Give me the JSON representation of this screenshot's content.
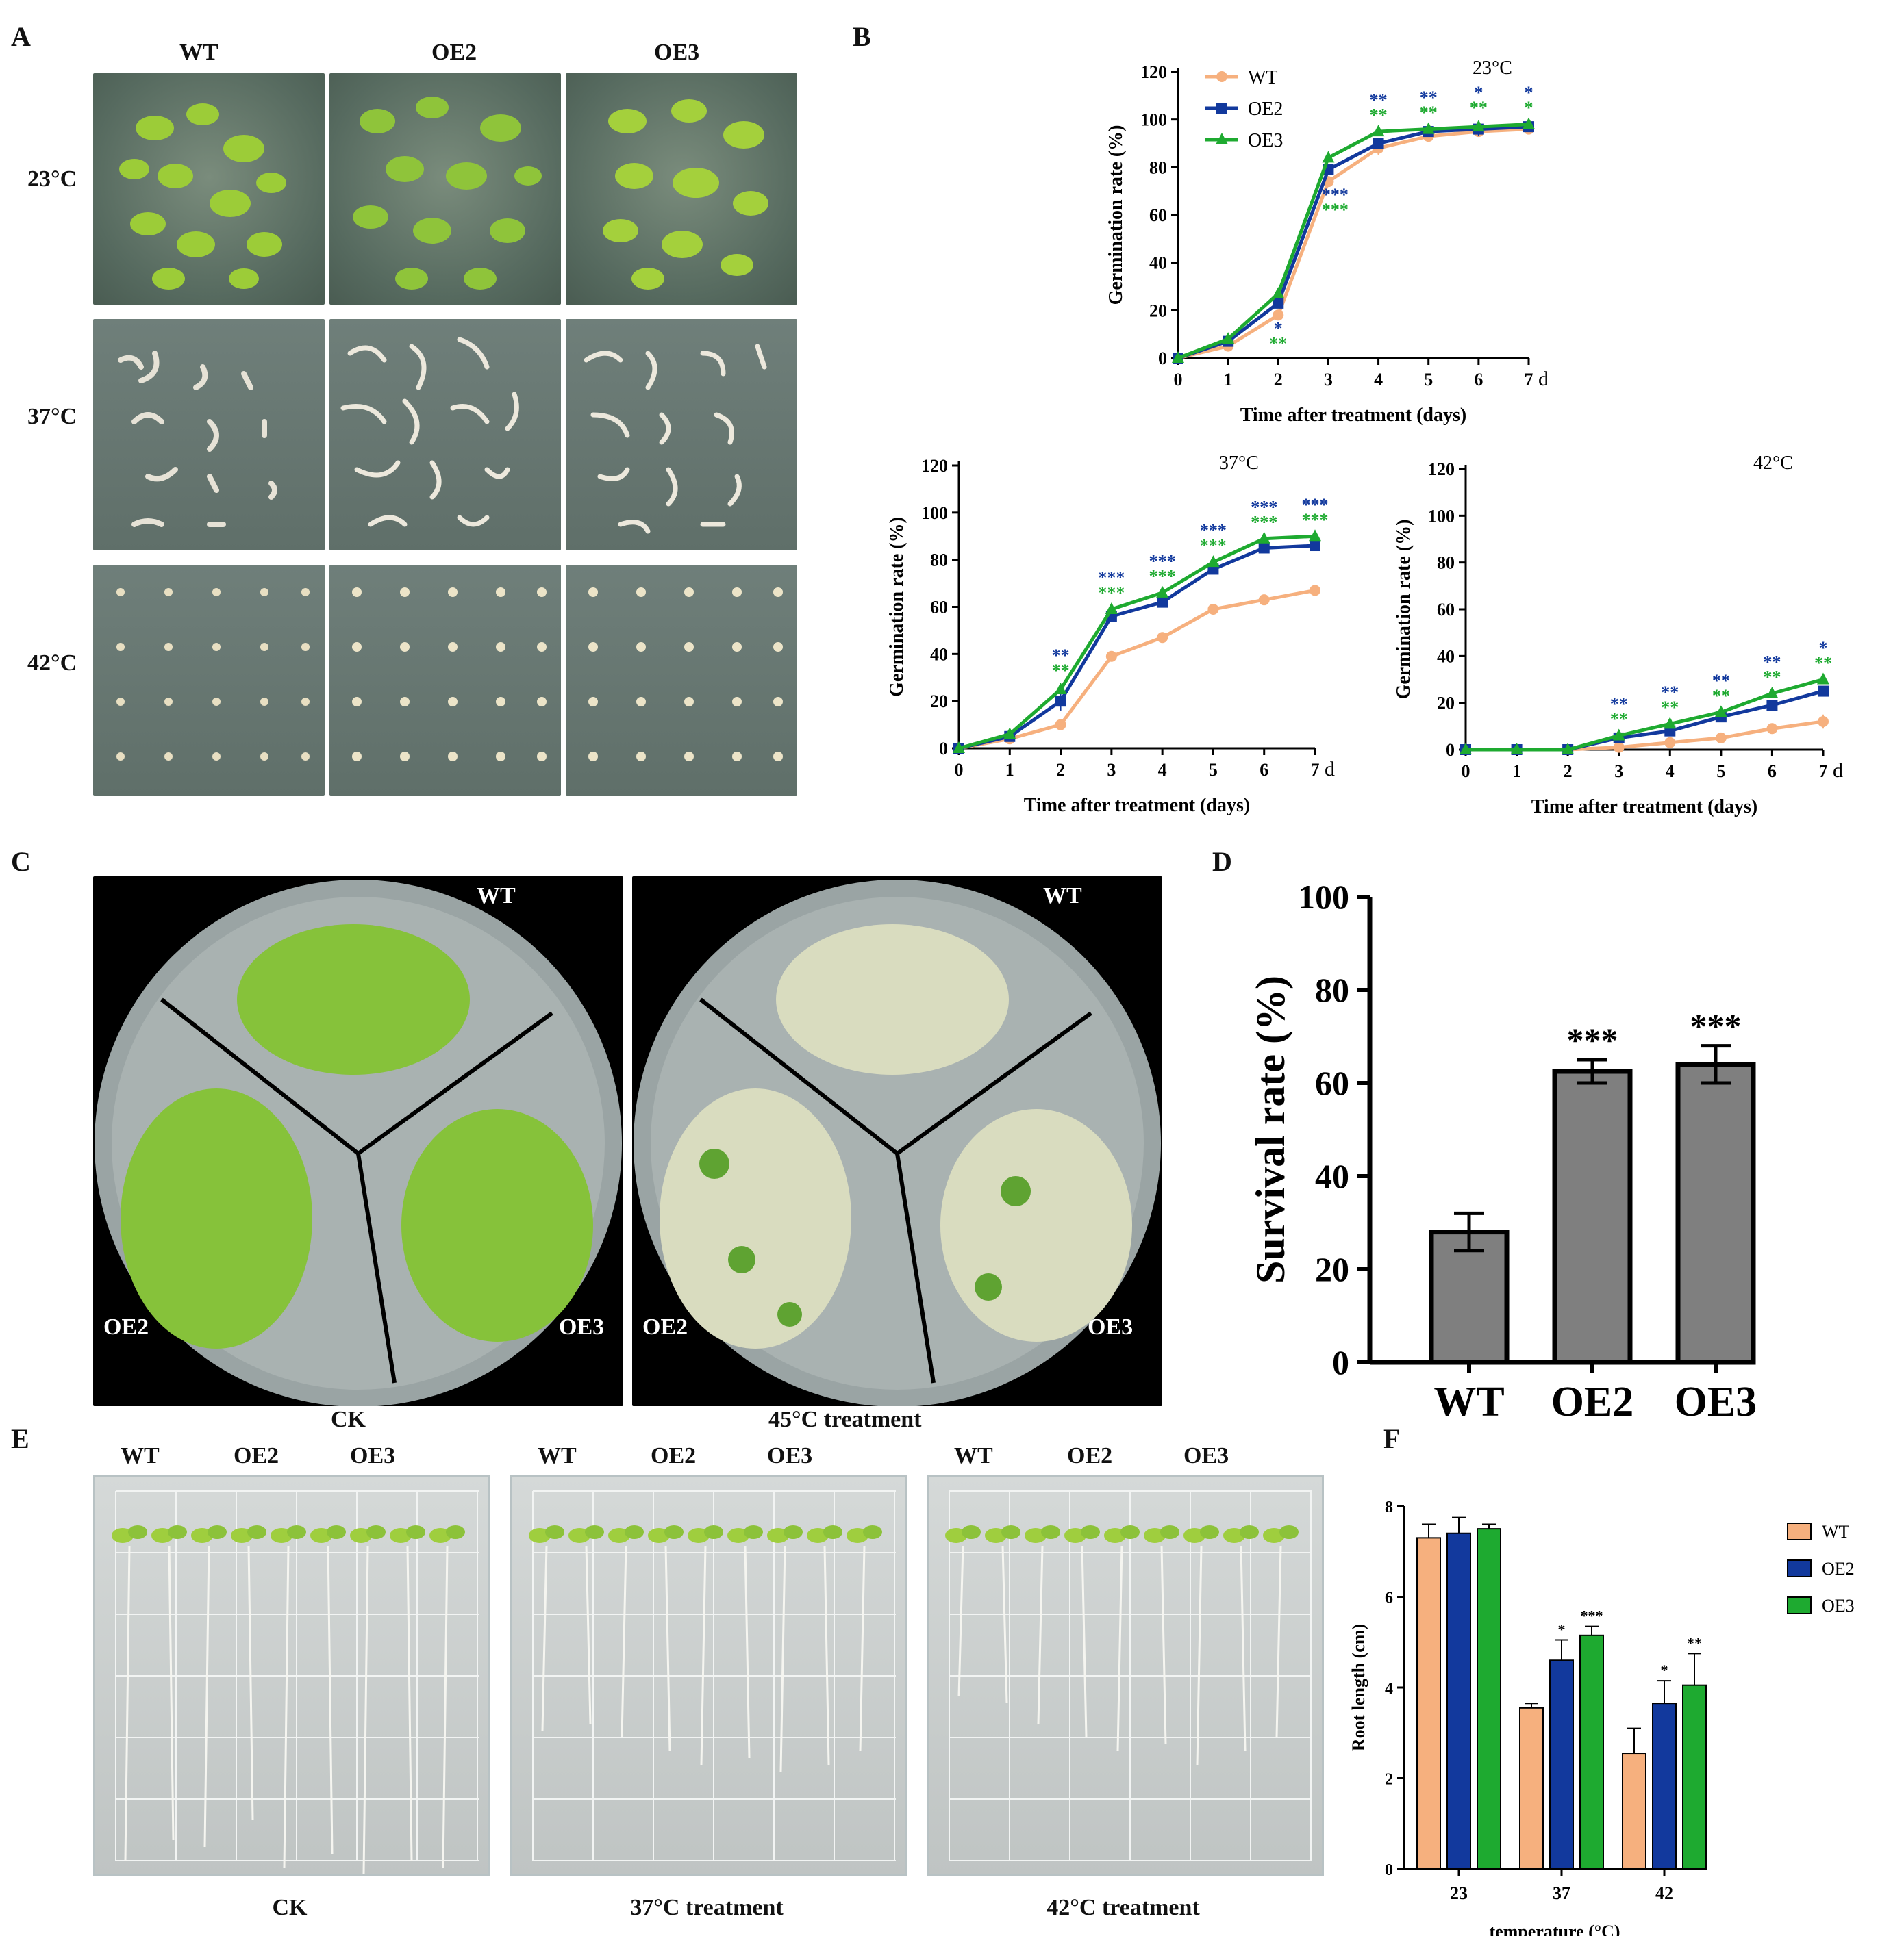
{
  "panels": {
    "A": {
      "letter": "A",
      "columns": [
        "WT",
        "OE2",
        "OE3"
      ],
      "rows": [
        "23°C",
        "37°C",
        "42°C"
      ]
    },
    "B": {
      "letter": "B"
    },
    "C": {
      "letter": "C",
      "left_caption": "CK",
      "right_caption": "45°C treatment",
      "plate_labels": [
        "WT",
        "OE2",
        "OE3"
      ]
    },
    "D": {
      "letter": "D"
    },
    "E": {
      "letter": "E",
      "plate_labels": [
        "WT",
        "OE2",
        "OE3"
      ],
      "captions": [
        "CK",
        "37°C treatment",
        "42°C treatment"
      ]
    },
    "F": {
      "letter": "F"
    }
  },
  "colors": {
    "WT": "#f6b07e",
    "OE2": "#12399d",
    "OE3": "#1eaa30",
    "bar_gray": "#7f7f7f"
  },
  "chart_data": [
    {
      "id": "B-23",
      "type": "line",
      "title": "23°C",
      "xlabel": "Time after treatment (days)",
      "ylabel": "Germination rate (%)",
      "x_suffix": "d",
      "x": [
        0,
        1,
        2,
        3,
        4,
        5,
        6,
        7
      ],
      "ylim": [
        0,
        120
      ],
      "yticks": [
        0,
        20,
        40,
        60,
        80,
        100,
        120
      ],
      "legend": "top-left",
      "series": [
        {
          "name": "WT",
          "values": [
            0,
            5,
            18,
            74,
            88,
            93,
            95,
            96
          ],
          "errors": [
            0,
            1,
            2,
            2,
            3,
            1,
            2,
            1
          ]
        },
        {
          "name": "OE2",
          "values": [
            0,
            7,
            23,
            79,
            90,
            95,
            96,
            97
          ],
          "errors": [
            0,
            1,
            1,
            2,
            2,
            1,
            3,
            1
          ]
        },
        {
          "name": "OE3",
          "values": [
            0,
            8,
            27,
            84,
            95,
            96,
            97,
            98
          ],
          "errors": [
            0,
            1,
            1,
            1,
            1,
            1,
            1,
            1
          ]
        }
      ],
      "annotations": {
        "OE2": [
          "",
          "",
          "*",
          "***",
          "**",
          "**",
          "*",
          "*"
        ],
        "OE3": [
          "",
          "",
          "**",
          "***",
          "**",
          "**",
          "**",
          "*"
        ]
      }
    },
    {
      "id": "B-37",
      "type": "line",
      "title": "37°C",
      "xlabel": "Time after treatment (days)",
      "ylabel": "Germination rate (%)",
      "x_suffix": "d",
      "x": [
        0,
        1,
        2,
        3,
        4,
        5,
        6,
        7
      ],
      "ylim": [
        0,
        120
      ],
      "yticks": [
        0,
        20,
        40,
        60,
        80,
        100,
        120
      ],
      "series": [
        {
          "name": "WT",
          "values": [
            0,
            4,
            10,
            39,
            47,
            59,
            63,
            67
          ],
          "errors": [
            0,
            1,
            1,
            1,
            1,
            1,
            1,
            1
          ]
        },
        {
          "name": "OE2",
          "values": [
            0,
            5,
            20,
            56,
            62,
            76,
            85,
            86
          ],
          "errors": [
            0,
            1,
            4,
            2,
            2,
            2,
            2,
            2
          ]
        },
        {
          "name": "OE3",
          "values": [
            0,
            6,
            25,
            59,
            66,
            79,
            89,
            90
          ],
          "errors": [
            0,
            1,
            2,
            1,
            1,
            1,
            1,
            1
          ]
        }
      ],
      "annotations": {
        "OE2": [
          "",
          "",
          "**",
          "***",
          "***",
          "***",
          "***",
          "***"
        ],
        "OE3": [
          "",
          "",
          "**",
          "***",
          "***",
          "***",
          "***",
          "***"
        ]
      }
    },
    {
      "id": "B-42",
      "type": "line",
      "title": "42°C",
      "xlabel": "Time after treatment (days)",
      "ylabel": "Germination rate (%)",
      "x_suffix": "d",
      "x": [
        0,
        1,
        2,
        3,
        4,
        5,
        6,
        7
      ],
      "ylim": [
        0,
        120
      ],
      "yticks": [
        0,
        20,
        40,
        60,
        80,
        100,
        120
      ],
      "series": [
        {
          "name": "WT",
          "values": [
            0,
            0,
            0,
            1,
            3,
            5,
            9,
            12
          ],
          "errors": [
            0,
            0,
            0,
            0,
            1,
            1,
            1,
            3
          ]
        },
        {
          "name": "OE2",
          "values": [
            0,
            0,
            0,
            5,
            8,
            14,
            19,
            25
          ],
          "errors": [
            0,
            0,
            0,
            1,
            1,
            1,
            1,
            2
          ]
        },
        {
          "name": "OE3",
          "values": [
            0,
            0,
            0,
            6,
            11,
            16,
            24,
            30
          ],
          "errors": [
            0,
            0,
            0,
            1,
            1,
            1,
            1,
            1
          ]
        }
      ],
      "annotations": {
        "OE2": [
          "",
          "",
          "",
          "**",
          "**",
          "**",
          "**",
          "*"
        ],
        "OE3": [
          "",
          "",
          "",
          "**",
          "**",
          "**",
          "**",
          "**"
        ]
      }
    },
    {
      "id": "D",
      "type": "bar",
      "categories": [
        "WT",
        "OE2",
        "OE3"
      ],
      "values": [
        28,
        62.5,
        64
      ],
      "errors": [
        4,
        2.5,
        4
      ],
      "annotations": [
        "",
        "***",
        "***"
      ],
      "ylabel": "Survival rate (%)",
      "ylim": [
        0,
        100
      ],
      "yticks": [
        0,
        20,
        40,
        60,
        80,
        100
      ]
    },
    {
      "id": "F",
      "type": "bar",
      "categories": [
        "23",
        "37",
        "42"
      ],
      "xlabel": "temperature (°C)",
      "ylabel": "Root length (cm)",
      "ylim": [
        0,
        8
      ],
      "yticks": [
        0,
        2,
        4,
        6,
        8
      ],
      "legend": "right",
      "series": [
        {
          "name": "WT",
          "values": [
            7.3,
            3.55,
            2.55
          ],
          "errors": [
            0.3,
            0.1,
            0.55
          ]
        },
        {
          "name": "OE2",
          "values": [
            7.4,
            4.6,
            3.65
          ],
          "errors": [
            0.35,
            0.45,
            0.5
          ]
        },
        {
          "name": "OE3",
          "values": [
            7.5,
            5.15,
            4.05
          ],
          "errors": [
            0.1,
            0.2,
            0.7
          ]
        }
      ],
      "annotations": {
        "WT": [
          "",
          "",
          ""
        ],
        "OE2": [
          "",
          "*",
          "*"
        ],
        "OE3": [
          "",
          "***",
          "**"
        ]
      }
    }
  ]
}
